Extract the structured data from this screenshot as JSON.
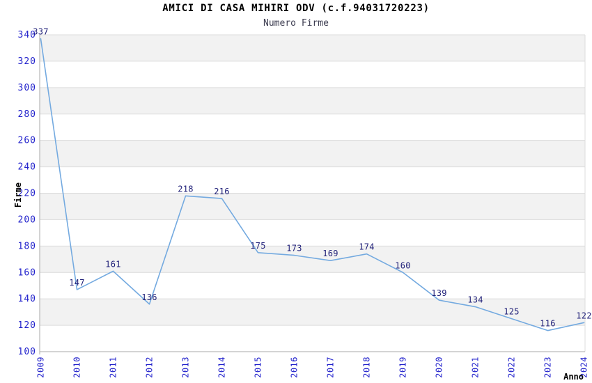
{
  "chart_data": {
    "type": "line",
    "title": "AMICI DI CASA MIHIRI ODV (c.f.94031720223)",
    "subtitle": "Numero Firme",
    "xlabel": "Anno",
    "ylabel": "Firme",
    "x": [
      "2009",
      "2010",
      "2011",
      "2012",
      "2013",
      "2014",
      "2015",
      "2016",
      "2017",
      "2018",
      "2019",
      "2020",
      "2021",
      "2022",
      "2023",
      "2024"
    ],
    "values": [
      337,
      147,
      161,
      136,
      218,
      216,
      175,
      173,
      169,
      174,
      160,
      139,
      134,
      125,
      116,
      122
    ],
    "ylim": [
      100,
      340
    ],
    "yticks": [
      100,
      120,
      140,
      160,
      180,
      200,
      220,
      240,
      260,
      280,
      300,
      320,
      340
    ],
    "x_tick_rotation_deg": 90,
    "grid": "horizontal",
    "legend": "none",
    "band_pattern": "alternating gray/white horizontal bands, gray topmost",
    "colors": {
      "line": "#74AAE0",
      "tick_label": "#2222CC",
      "data_label": "#1F1F78",
      "band": "#F2F2F2",
      "gridline": "#DCDCDC",
      "axis": "#A8A8A8",
      "title": "#000000",
      "subtitle": "#3C3C50",
      "axis_title": "#000000",
      "background": "#FFFFFF"
    }
  }
}
